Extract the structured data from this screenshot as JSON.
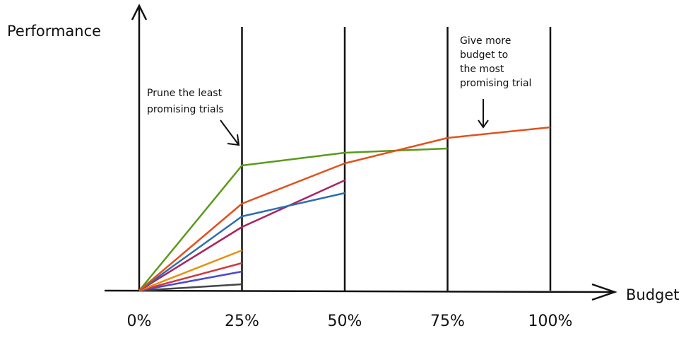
{
  "chart_data": {
    "type": "line",
    "y_label": "Performance",
    "x_label": "Budget",
    "x": [
      0,
      25,
      50,
      75,
      100
    ],
    "xlim": [
      0,
      100
    ],
    "xticks": [
      {
        "value": 0,
        "label": "0%"
      },
      {
        "value": 25,
        "label": "25%"
      },
      {
        "value": 50,
        "label": "50%"
      },
      {
        "value": 75,
        "label": "75%"
      },
      {
        "value": 100,
        "label": "100%"
      }
    ],
    "ylim": [
      0,
      100
    ],
    "grid": true,
    "series": [
      {
        "color": "#444444",
        "values": [
          0,
          3,
          null,
          null,
          null
        ]
      },
      {
        "color": "#4a4ad0",
        "values": [
          0,
          9,
          null,
          null,
          null
        ]
      },
      {
        "color": "#d0383e",
        "values": [
          0,
          13,
          null,
          null,
          null
        ]
      },
      {
        "color": "#e8900c",
        "values": [
          0,
          19,
          null,
          null,
          null
        ]
      },
      {
        "color": "#a8245e",
        "values": [
          0,
          30,
          52,
          null,
          null
        ]
      },
      {
        "color": "#2c6db0",
        "values": [
          0,
          35,
          46,
          null,
          null
        ]
      },
      {
        "color": "#5a9a1a",
        "values": [
          0,
          59,
          65,
          67,
          null
        ]
      },
      {
        "color": "#e0521c",
        "values": [
          0,
          41,
          60,
          72,
          77
        ]
      }
    ],
    "annotations": [
      [
        "Prune the least",
        "promising trials"
      ],
      [
        "Give more",
        "budget to",
        "the most",
        "promising trial"
      ]
    ]
  }
}
